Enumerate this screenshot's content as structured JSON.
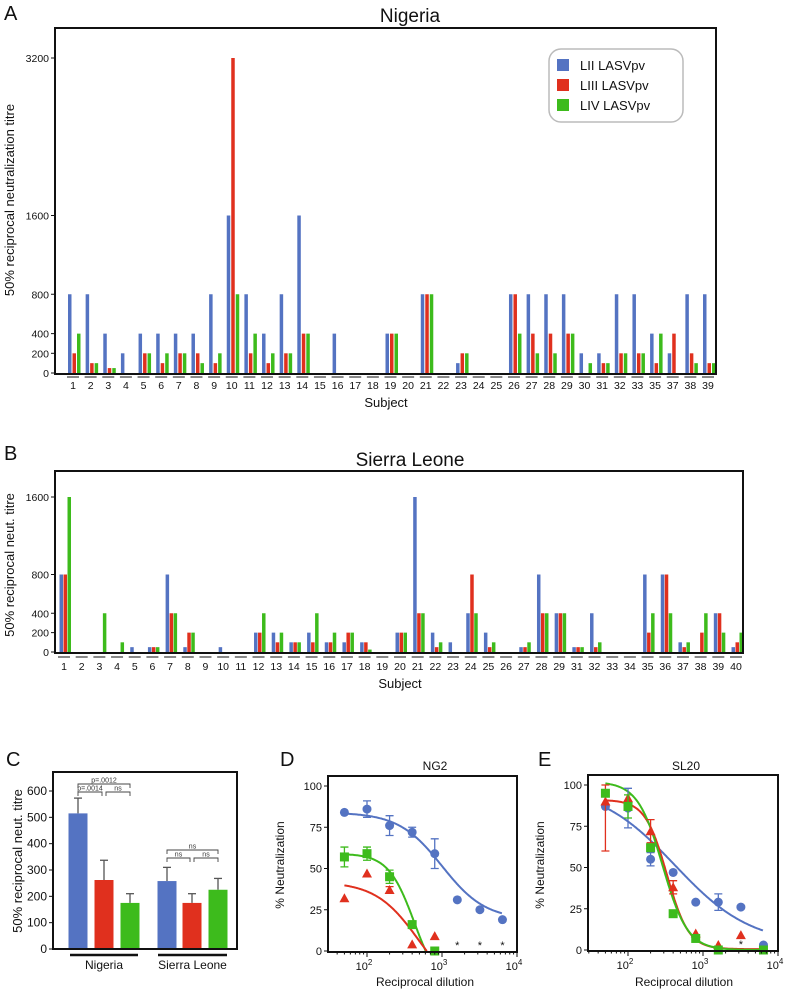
{
  "colors": {
    "LII": "#5473c2",
    "LIII": "#e0301e",
    "LIV": "#3dbb1c",
    "axis": "#111111"
  },
  "chart_data": [
    {
      "panel": "A",
      "type": "bar",
      "title": "Nigeria",
      "xlabel": "Subject",
      "ylabel": "50% reciprocal neutralization titre",
      "ylim": [
        0,
        3200
      ],
      "yticks": [
        0,
        200,
        400,
        800,
        1600,
        3200
      ],
      "legend": {
        "placement": "top-right",
        "entries": [
          "LII LASVpv",
          "LIII LASVpv",
          "LIV LASVpv"
        ]
      },
      "categories": [
        "1",
        "2",
        "3",
        "4",
        "5",
        "6",
        "7",
        "8",
        "9",
        "10",
        "11",
        "12",
        "13",
        "14",
        "15",
        "16",
        "17",
        "18",
        "19",
        "20",
        "21",
        "22",
        "23",
        "24",
        "25",
        "26",
        "27",
        "28",
        "29",
        "30",
        "31",
        "32",
        "33",
        "35",
        "37",
        "38",
        "39"
      ],
      "series": [
        {
          "name": "LII LASVpv",
          "values": [
            800,
            800,
            400,
            200,
            400,
            400,
            400,
            400,
            800,
            1600,
            800,
            400,
            800,
            1600,
            0,
            400,
            0,
            0,
            400,
            0,
            800,
            0,
            100,
            0,
            0,
            800,
            800,
            800,
            800,
            200,
            200,
            800,
            800,
            400,
            200,
            800,
            800
          ]
        },
        {
          "name": "LIII LASVpv",
          "values": [
            200,
            100,
            50,
            0,
            200,
            100,
            200,
            200,
            100,
            3200,
            200,
            100,
            200,
            400,
            0,
            0,
            0,
            0,
            400,
            0,
            800,
            0,
            200,
            0,
            0,
            800,
            400,
            400,
            400,
            0,
            100,
            200,
            200,
            100,
            400,
            200,
            100
          ]
        },
        {
          "name": "LIV LASVpv",
          "values": [
            400,
            100,
            50,
            0,
            200,
            200,
            200,
            100,
            200,
            800,
            400,
            200,
            200,
            400,
            0,
            0,
            0,
            0,
            400,
            0,
            800,
            0,
            200,
            0,
            0,
            400,
            200,
            200,
            400,
            100,
            100,
            200,
            200,
            400,
            0,
            100,
            100
          ]
        }
      ]
    },
    {
      "panel": "B",
      "type": "bar",
      "title": "Sierra Leone",
      "xlabel": "Subject",
      "ylabel": "50% reciprocal neut. titre",
      "ylim": [
        0,
        1600
      ],
      "yticks": [
        0,
        200,
        400,
        800,
        1600
      ],
      "categories": [
        "1",
        "2",
        "3",
        "4",
        "5",
        "6",
        "7",
        "8",
        "9",
        "10",
        "11",
        "12",
        "13",
        "14",
        "15",
        "16",
        "17",
        "18",
        "19",
        "20",
        "21",
        "22",
        "23",
        "24",
        "25",
        "26",
        "27",
        "28",
        "29",
        "31",
        "32",
        "33",
        "34",
        "35",
        "36",
        "37",
        "38",
        "39",
        "40"
      ],
      "series": [
        {
          "name": "LII LASVpv",
          "values": [
            800,
            0,
            0,
            0,
            50,
            50,
            800,
            50,
            0,
            50,
            0,
            200,
            200,
            100,
            200,
            100,
            100,
            100,
            0,
            200,
            1600,
            200,
            100,
            400,
            200,
            0,
            50,
            800,
            400,
            50,
            400,
            0,
            0,
            800,
            800,
            100,
            0,
            400,
            50
          ]
        },
        {
          "name": "LIII LASVpv",
          "values": [
            800,
            0,
            0,
            0,
            0,
            50,
            400,
            200,
            0,
            0,
            0,
            200,
            100,
            100,
            100,
            100,
            200,
            100,
            0,
            200,
            400,
            50,
            0,
            800,
            50,
            0,
            50,
            400,
            400,
            50,
            50,
            0,
            0,
            200,
            800,
            50,
            200,
            400,
            100
          ]
        },
        {
          "name": "LIV LASVpv",
          "values": [
            1600,
            0,
            400,
            100,
            0,
            50,
            400,
            200,
            0,
            0,
            0,
            400,
            200,
            100,
            400,
            200,
            200,
            25,
            0,
            200,
            400,
            100,
            0,
            400,
            100,
            0,
            100,
            400,
            400,
            50,
            100,
            0,
            0,
            400,
            400,
            100,
            400,
            200,
            200
          ]
        }
      ]
    },
    {
      "panel": "C",
      "type": "bar",
      "ylabel": "50% reciprocal neut. titre",
      "ylim": [
        0,
        650
      ],
      "yticks": [
        0,
        100,
        200,
        300,
        400,
        500,
        600
      ],
      "categories": [
        "Nigeria",
        "Sierra Leone"
      ],
      "series": [
        {
          "name": "LII LASVpv",
          "values": [
            515,
            258
          ],
          "errors": [
            58,
            52
          ]
        },
        {
          "name": "LIII LASVpv",
          "values": [
            262,
            175
          ],
          "errors": [
            75,
            35
          ]
        },
        {
          "name": "LIV LASVpv",
          "values": [
            175,
            225
          ],
          "errors": [
            35,
            43
          ]
        }
      ],
      "annotations": [
        {
          "group": "Nigeria",
          "from": 0,
          "to": 2,
          "label": "p=.0012",
          "level": 2
        },
        {
          "group": "Nigeria",
          "from": 0,
          "to": 1,
          "label": "p=.0014",
          "level": 1
        },
        {
          "group": "Nigeria",
          "from": 1,
          "to": 2,
          "label": "ns",
          "level": 1
        },
        {
          "group": "Sierra Leone",
          "from": 0,
          "to": 2,
          "label": "ns",
          "level": 2
        },
        {
          "group": "Sierra Leone",
          "from": 0,
          "to": 1,
          "label": "ns",
          "level": 1
        },
        {
          "group": "Sierra Leone",
          "from": 1,
          "to": 2,
          "label": "ns",
          "level": 1
        }
      ]
    },
    {
      "panel": "D",
      "type": "scatter",
      "title": "NG2",
      "xlabel": "Reciprocal dilution",
      "ylabel": "% Neutralization",
      "xscale": "log",
      "xlim": [
        30,
        10000
      ],
      "ylim": [
        0,
        100
      ],
      "yticks": [
        0,
        25,
        50,
        75,
        100
      ],
      "xticks": [
        {
          "base": "10",
          "exp": "2",
          "value": 100
        },
        {
          "base": "10",
          "exp": "3",
          "value": 1000
        },
        {
          "base": "10",
          "exp": "4",
          "value": 10000
        }
      ],
      "series": [
        {
          "name": "LII LASVpv",
          "marker": "circle",
          "x": [
            50,
            100,
            200,
            400,
            800,
            1600,
            3200,
            6400
          ],
          "y": [
            84,
            86,
            76,
            72,
            59,
            31,
            25,
            19
          ],
          "err": [
            0,
            5,
            6,
            3,
            9,
            0,
            0,
            0
          ],
          "fit": {
            "top": 84,
            "bottom": 19,
            "ec50": 1000,
            "hill": 1.5
          }
        },
        {
          "name": "LIV LASVpv",
          "marker": "square",
          "x": [
            50,
            100,
            200,
            400,
            800
          ],
          "y": [
            57,
            59,
            45,
            16,
            0
          ],
          "err": [
            6,
            4,
            4,
            0,
            0
          ],
          "fit": {
            "top": 59,
            "bottom": -25,
            "ec50": 430,
            "hill": 2.5
          }
        },
        {
          "name": "LIII LASVpv",
          "marker": "triangle",
          "x": [
            50,
            100,
            200,
            400,
            800
          ],
          "y": [
            32,
            47,
            37,
            4,
            9
          ],
          "err": [
            0,
            0,
            2,
            0,
            0
          ],
          "fit": {
            "top": 42,
            "bottom": -30,
            "ec50": 500,
            "hill": 1.5
          }
        }
      ],
      "asterisks": {
        "label": "*",
        "x": [
          1600,
          3200,
          6400
        ]
      }
    },
    {
      "panel": "E",
      "type": "scatter",
      "title": "SL20",
      "xlabel": "Reciprocal dilution",
      "ylabel": "% Neutralization",
      "xscale": "log",
      "xlim": [
        30,
        10000
      ],
      "ylim": [
        0,
        100
      ],
      "yticks": [
        0,
        25,
        50,
        75,
        100
      ],
      "xticks": [
        {
          "base": "10",
          "exp": "2",
          "value": 100
        },
        {
          "base": "10",
          "exp": "3",
          "value": 1000
        },
        {
          "base": "10",
          "exp": "4",
          "value": 10000
        }
      ],
      "series": [
        {
          "name": "LII LASVpv",
          "marker": "circle",
          "x": [
            50,
            100,
            200,
            400,
            800,
            1600,
            3200,
            6400
          ],
          "y": [
            87,
            86,
            55,
            47,
            29,
            29,
            26,
            3
          ],
          "err": [
            0,
            12,
            4,
            0,
            0,
            5,
            0,
            0
          ],
          "fit": {
            "top": 100,
            "bottom": 3,
            "ec50": 420,
            "hill": 0.85
          }
        },
        {
          "name": "LIII LASVpv",
          "marker": "triangle",
          "x": [
            50,
            100,
            200,
            400,
            800,
            1600,
            3200
          ],
          "y": [
            90,
            92,
            72,
            38,
            10,
            3,
            9
          ],
          "err": [
            30,
            0,
            7,
            4,
            0,
            0,
            0
          ],
          "fit": {
            "top": 91,
            "bottom": 0.5,
            "ec50": 330,
            "hill": 3
          }
        },
        {
          "name": "LIV LASVpv",
          "marker": "square",
          "x": [
            50,
            100,
            200,
            400,
            800,
            1600,
            6400
          ],
          "y": [
            95,
            87,
            62,
            22,
            7,
            0,
            0
          ],
          "err": [
            0,
            7,
            0,
            0,
            0,
            0,
            0
          ],
          "fit": {
            "top": 102,
            "bottom": 0,
            "ec50": 290,
            "hill": 2.6
          }
        }
      ],
      "asterisks": {
        "label": "*",
        "x": [
          3200
        ]
      }
    }
  ]
}
